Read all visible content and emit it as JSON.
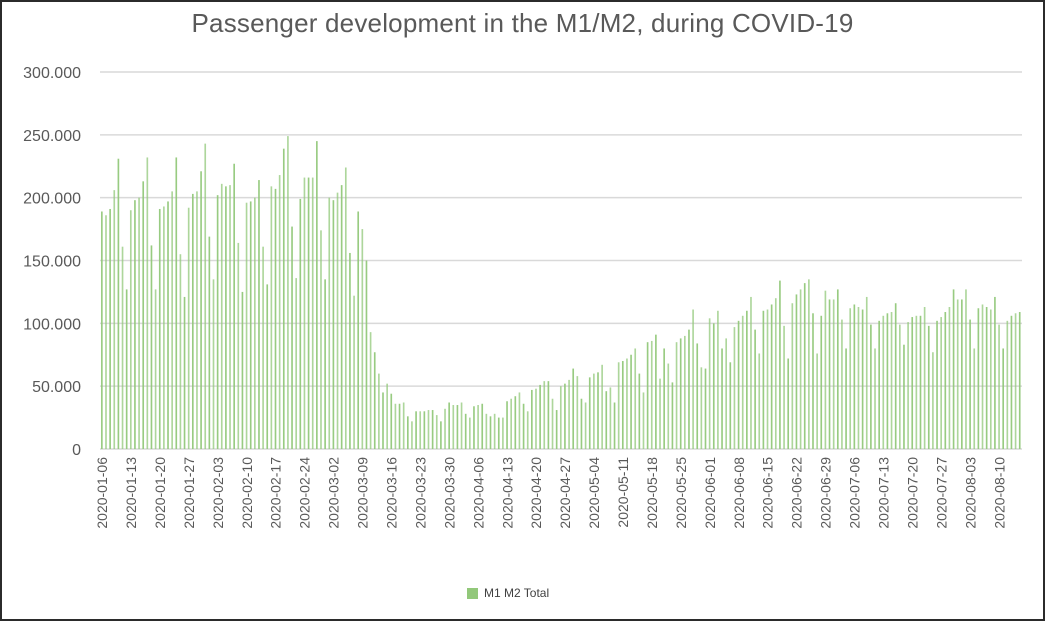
{
  "chart_data": {
    "type": "bar",
    "title": "Passenger development in the M1/M2, during COVID-19",
    "xlabel": "",
    "ylabel": "",
    "ylim": [
      0,
      300000
    ],
    "y_ticks": [
      0,
      50000,
      100000,
      150000,
      200000,
      250000,
      300000
    ],
    "y_tick_labels": [
      "0",
      "50.000",
      "100.000",
      "150.000",
      "200.000",
      "250.000",
      "300.000"
    ],
    "grid": true,
    "legend_position": "bottom",
    "x_start_date": "2020-01-06",
    "x_end_date": "2020-08-15",
    "x_tick_labels": [
      "2020-01-06",
      "2020-01-13",
      "2020-01-20",
      "2020-01-27",
      "2020-02-03",
      "2020-02-10",
      "2020-02-17",
      "2020-02-24",
      "2020-03-02",
      "2020-03-09",
      "2020-03-16",
      "2020-03-23",
      "2020-03-30",
      "2020-04-06",
      "2020-04-13",
      "2020-04-20",
      "2020-04-27",
      "2020-05-04",
      "2020-05-11",
      "2020-05-18",
      "2020-05-25",
      "2020-06-01",
      "2020-06-08",
      "2020-06-15",
      "2020-06-22",
      "2020-06-29",
      "2020-07-06",
      "2020-07-13",
      "2020-07-20",
      "2020-07-27",
      "2020-08-03",
      "2020-08-10"
    ],
    "series": [
      {
        "name": "M1 M2 Total",
        "color": "#92c87a",
        "values": [
          189000,
          186000,
          191000,
          206000,
          231000,
          161000,
          127000,
          190000,
          198000,
          200000,
          213000,
          232000,
          162000,
          127000,
          191000,
          193000,
          197000,
          205000,
          232000,
          155000,
          121000,
          192000,
          203000,
          205000,
          221000,
          243000,
          169000,
          135000,
          202000,
          211000,
          209000,
          210000,
          227000,
          164000,
          125000,
          196000,
          197000,
          200000,
          214000,
          161000,
          131000,
          209000,
          207000,
          218000,
          239000,
          249000,
          177000,
          136000,
          199000,
          216000,
          216000,
          216000,
          245000,
          174000,
          135000,
          200000,
          198000,
          204000,
          210000,
          224000,
          156000,
          122000,
          189000,
          175000,
          150000,
          93000,
          77000,
          60000,
          45000,
          52000,
          44000,
          36000,
          36000,
          37000,
          26000,
          22000,
          30000,
          30000,
          30000,
          31000,
          31000,
          27000,
          22000,
          32000,
          37000,
          35000,
          35000,
          37000,
          28000,
          25000,
          34000,
          35000,
          36000,
          28000,
          26000,
          28000,
          25000,
          25000,
          38000,
          40000,
          42000,
          45000,
          36000,
          30000,
          47000,
          48000,
          51000,
          54000,
          54000,
          40000,
          31000,
          50000,
          52000,
          55000,
          64000,
          58000,
          40000,
          37000,
          57000,
          60000,
          61000,
          67000,
          46000,
          49000,
          37000,
          69000,
          70000,
          72000,
          75000,
          80000,
          60000,
          45000,
          85000,
          86000,
          91000,
          56000,
          80000,
          68000,
          53000,
          85000,
          88000,
          90000,
          95000,
          111000,
          84000,
          65000,
          64000,
          104000,
          100000,
          110000,
          80000,
          88000,
          69000,
          97000,
          102000,
          106000,
          110000,
          121000,
          95000,
          76000,
          110000,
          111000,
          115000,
          120000,
          134000,
          98000,
          72000,
          116000,
          123000,
          127000,
          132000,
          135000,
          108000,
          76000,
          106000,
          126000,
          119000,
          119000,
          127000,
          103000,
          80000,
          112000,
          115000,
          113000,
          111000,
          121000,
          99000,
          80000,
          102000,
          106000,
          108000,
          109000,
          116000,
          99000,
          83000,
          101000,
          105000,
          106000,
          106000,
          113000,
          98000,
          77000,
          102000,
          105000,
          109000,
          113000,
          127000,
          119000,
          119000,
          127000,
          103000,
          80000,
          112000,
          115000,
          113000,
          111000,
          121000,
          99000,
          80000,
          102000,
          106000,
          108000,
          109000
        ]
      }
    ]
  },
  "legend": {
    "label": "M1 M2 Total"
  }
}
